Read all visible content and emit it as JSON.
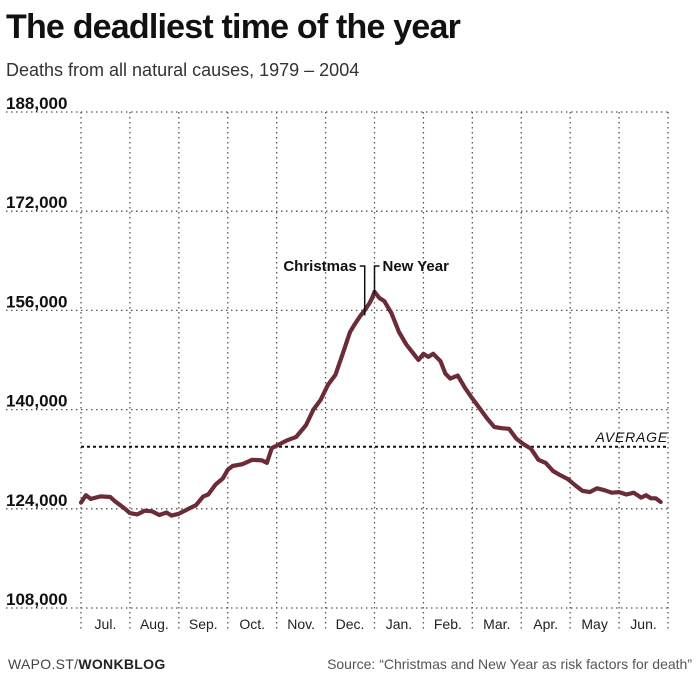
{
  "chart_data": {
    "type": "line",
    "title": "The deadliest time of the year",
    "subtitle": "Deaths from all natural causes, 1979 – 2004",
    "xlabel": "",
    "ylabel": "",
    "ylim": [
      108000,
      188000
    ],
    "yticks": [
      {
        "value": 108000,
        "label": "108,000"
      },
      {
        "value": 124000,
        "label": "124,000"
      },
      {
        "value": 140000,
        "label": "140,000"
      },
      {
        "value": 156000,
        "label": "156,000"
      },
      {
        "value": 172000,
        "label": "172,000"
      },
      {
        "value": 188000,
        "label": "188,000"
      }
    ],
    "xlim": [
      0,
      12
    ],
    "categories": [
      "Jul.",
      "Aug.",
      "Sep.",
      "Oct.",
      "Nov.",
      "Dec.",
      "Jan.",
      "Feb.",
      "Mar.",
      "Apr.",
      "May",
      "Jun."
    ],
    "grid": true,
    "series": [
      {
        "name": "Deaths",
        "color": "#6b2c38",
        "x": [
          0.0,
          0.1,
          0.2,
          0.4,
          0.6,
          0.7,
          0.8,
          0.9,
          1.0,
          1.15,
          1.3,
          1.45,
          1.6,
          1.75,
          1.85,
          2.0,
          2.2,
          2.35,
          2.5,
          2.6,
          2.75,
          2.9,
          3.0,
          3.1,
          3.3,
          3.5,
          3.7,
          3.8,
          3.9,
          4.0,
          4.2,
          4.4,
          4.6,
          4.75,
          4.9,
          5.05,
          5.2,
          5.35,
          5.5,
          5.6,
          5.7,
          5.8,
          5.9,
          5.95,
          6.0,
          6.1,
          6.2,
          6.35,
          6.5,
          6.65,
          6.8,
          6.9,
          7.0,
          7.1,
          7.2,
          7.35,
          7.45,
          7.55,
          7.7,
          7.85,
          8.0,
          8.15,
          8.3,
          8.45,
          8.6,
          8.75,
          8.9,
          9.05,
          9.2,
          9.35,
          9.5,
          9.65,
          9.8,
          9.95,
          10.1,
          10.25,
          10.4,
          10.55,
          10.7,
          10.85,
          11.0,
          11.15,
          11.3,
          11.45,
          11.55,
          11.65,
          11.75,
          11.85
        ],
        "values": [
          125000,
          126200,
          125600,
          126000,
          125900,
          125200,
          124600,
          124000,
          123300,
          123100,
          123700,
          123600,
          123000,
          123400,
          122900,
          123200,
          124000,
          124600,
          126000,
          126300,
          127900,
          128900,
          130300,
          130900,
          131200,
          131900,
          131800,
          131400,
          133800,
          134200,
          135000,
          135600,
          137500,
          140000,
          141600,
          144000,
          145600,
          149000,
          152500,
          153800,
          155000,
          156000,
          157200,
          158000,
          159000,
          158000,
          157500,
          155500,
          152500,
          150500,
          149000,
          148000,
          149000,
          148500,
          149000,
          147800,
          145800,
          145000,
          145500,
          143500,
          141800,
          140200,
          138600,
          137200,
          137000,
          136900,
          135300,
          134400,
          133700,
          131900,
          131400,
          130100,
          129400,
          128800,
          127800,
          126900,
          126700,
          127300,
          127000,
          126600,
          126700,
          126300,
          126600,
          125800,
          126200,
          125700,
          125700,
          125100
        ]
      }
    ],
    "average": {
      "value": 134000,
      "label": "AVERAGE"
    },
    "annotations": [
      {
        "label": "Christmas",
        "x": 5.8,
        "y": 155200
      },
      {
        "label": "New Year",
        "x": 6.0,
        "y": 158600
      }
    ]
  },
  "footer": {
    "source_prefix": "WAPO.ST/",
    "source_brand": "WONKBLOG",
    "source": "Source: “Christmas and New Year as risk factors for death”"
  }
}
